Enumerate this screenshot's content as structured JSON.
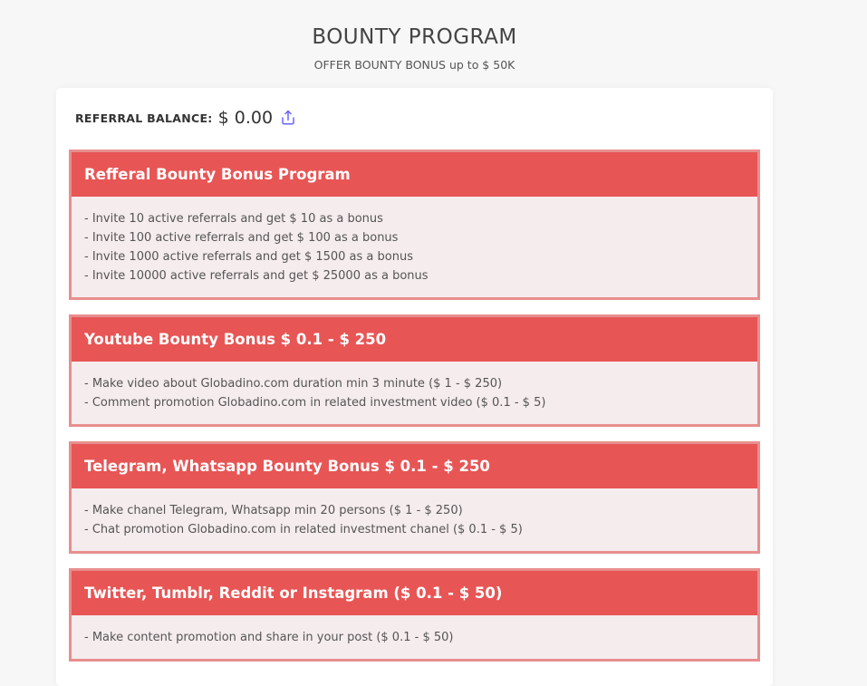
{
  "header": {
    "title": "BOUNTY PROGRAM",
    "subtitle": "OFFER BOUNTY BONUS up to $ 50K"
  },
  "balance": {
    "label": "REFERRAL BALANCE:",
    "value": "$ 0.00",
    "icon": "share-upload-icon",
    "icon_color": "#6c63ff"
  },
  "colors": {
    "header_bg": "#e85555",
    "border": "#e88e8e",
    "body_bg": "#f5eced"
  },
  "sections": [
    {
      "title": "Refferal Bounty Bonus Program",
      "items": [
        "- Invite 10 active referrals and get $ 10 as a bonus",
        "- Invite 100 active referrals and get $ 100 as a bonus",
        "- Invite 1000 active referrals and get $ 1500 as a bonus",
        "- Invite 10000 active referrals and get $ 25000 as a bonus"
      ]
    },
    {
      "title": "Youtube Bounty Bonus $ 0.1 - $ 250",
      "items": [
        "- Make video about Globadino.com duration min 3 minute ($ 1 - $ 250)",
        "- Comment promotion Globadino.com in related investment video ($ 0.1 - $ 5)"
      ]
    },
    {
      "title": "Telegram, Whatsapp Bounty Bonus $ 0.1 - $ 250",
      "items": [
        "- Make chanel Telegram, Whatsapp min 20 persons ($ 1 - $ 250)",
        "- Chat promotion Globadino.com in related investment chanel ($ 0.1 - $ 5)"
      ]
    },
    {
      "title": "Twitter, Tumblr, Reddit or Instagram ($ 0.1 - $ 50)",
      "items": [
        "- Make content promotion and share in your post ($ 0.1 - $ 50)"
      ]
    }
  ]
}
